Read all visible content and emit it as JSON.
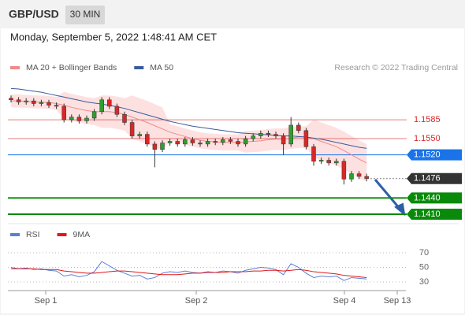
{
  "header": {
    "symbol": "GBP/USD",
    "interval": "30 MIN",
    "timestamp": "Monday, September 5, 2022 1:48:41 AM CET"
  },
  "chart_data": {
    "type": "candlestick",
    "credit": "Research © 2022 Trading Central",
    "up_color": "#2e9e2e",
    "down_color": "#d62828",
    "ylim": [
      1.1391,
      1.1661
    ],
    "x_labels": [
      "Sep 1",
      "Sep 2",
      "Sep 4",
      "Sep 13"
    ],
    "open": [
      1.1625,
      1.1622,
      1.1618,
      1.162,
      1.1615,
      1.1617,
      1.1612,
      1.161,
      1.1585,
      1.159,
      1.1583,
      1.1588,
      1.16,
      1.1622,
      1.161,
      1.1595,
      1.158,
      1.1555,
      1.1558,
      1.154,
      1.153,
      1.1542,
      1.1545,
      1.154,
      1.1548,
      1.1542,
      1.154,
      1.1545,
      1.1543,
      1.1548,
      1.1545,
      1.154,
      1.155,
      1.1555,
      1.156,
      1.1558,
      1.1555,
      1.154,
      1.1575,
      1.1565,
      1.1535,
      1.1508,
      1.151,
      1.1505,
      1.1508,
      1.1475,
      1.1485,
      1.148
    ],
    "high": [
      1.163,
      1.1627,
      1.1625,
      1.1625,
      1.1622,
      1.1622,
      1.1617,
      1.1615,
      1.1595,
      1.1595,
      1.1593,
      1.1605,
      1.1627,
      1.1627,
      1.1615,
      1.16,
      1.1585,
      1.1563,
      1.1563,
      1.1545,
      1.1547,
      1.155,
      1.155,
      1.1553,
      1.1553,
      1.1547,
      1.155,
      1.155,
      1.1553,
      1.1553,
      1.155,
      1.1555,
      1.156,
      1.1565,
      1.1565,
      1.1563,
      1.156,
      1.159,
      1.158,
      1.157,
      1.154,
      1.1515,
      1.1515,
      1.1513,
      1.1513,
      1.149,
      1.149,
      1.1485
    ],
    "low": [
      1.1617,
      1.1613,
      1.1613,
      1.161,
      1.161,
      1.1607,
      1.1605,
      1.158,
      1.158,
      1.1578,
      1.1578,
      1.1583,
      1.1595,
      1.1605,
      1.159,
      1.1575,
      1.155,
      1.155,
      1.1535,
      1.1497,
      1.1525,
      1.1537,
      1.1535,
      1.1535,
      1.1537,
      1.1535,
      1.1535,
      1.1538,
      1.1538,
      1.154,
      1.1535,
      1.1535,
      1.1545,
      1.155,
      1.1553,
      1.155,
      1.152,
      1.1535,
      1.156,
      1.153,
      1.15,
      1.1503,
      1.15,
      1.15,
      1.1465,
      1.147,
      1.1475,
      1.1471
    ],
    "close": [
      1.1622,
      1.1618,
      1.162,
      1.1615,
      1.1617,
      1.1612,
      1.161,
      1.1585,
      1.159,
      1.1583,
      1.1588,
      1.16,
      1.1622,
      1.161,
      1.1595,
      1.158,
      1.1555,
      1.1558,
      1.154,
      1.153,
      1.1542,
      1.1545,
      1.154,
      1.1548,
      1.1542,
      1.154,
      1.1545,
      1.1543,
      1.1548,
      1.1545,
      1.154,
      1.155,
      1.1555,
      1.156,
      1.1558,
      1.1555,
      1.154,
      1.1575,
      1.1565,
      1.1535,
      1.1508,
      1.151,
      1.1505,
      1.1508,
      1.1475,
      1.1485,
      1.148,
      1.1476
    ],
    "series": [
      {
        "name": "MA 20 + Bollinger Bands",
        "color": "#f08a8a",
        "band_color": "#fcd9d9",
        "values": [
          1.162,
          1.162,
          1.1619,
          1.1618,
          1.1618,
          1.1617,
          1.1615,
          1.1612,
          1.1608,
          1.1605,
          1.1602,
          1.16,
          1.16,
          1.16,
          1.1598,
          1.1595,
          1.159,
          1.1585,
          1.158,
          1.1574,
          1.1568,
          1.1562,
          1.1558,
          1.1554,
          1.155,
          1.1547,
          1.1545,
          1.1544,
          1.1543,
          1.1543,
          1.1543,
          1.1544,
          1.1545,
          1.1546,
          1.1548,
          1.1549,
          1.1549,
          1.1551,
          1.1553,
          1.1553,
          1.155,
          1.1545,
          1.154,
          1.1535,
          1.1528,
          1.152,
          1.1512,
          1.1505
        ],
        "upper": [
          1.1632,
          1.1632,
          1.1631,
          1.163,
          1.163,
          1.1629,
          1.1627,
          1.1637,
          1.1633,
          1.163,
          1.1627,
          1.1625,
          1.163,
          1.163,
          1.1628,
          1.1625,
          1.163,
          1.1625,
          1.162,
          1.1614,
          1.1608,
          1.1577,
          1.1573,
          1.1569,
          1.1565,
          1.1562,
          1.156,
          1.1559,
          1.1558,
          1.1558,
          1.1558,
          1.1564,
          1.1565,
          1.1566,
          1.1568,
          1.1569,
          1.1569,
          1.1571,
          1.1573,
          1.1573,
          1.1585,
          1.158,
          1.1575,
          1.157,
          1.1563,
          1.1555,
          1.1547,
          1.154
        ],
        "lower": [
          1.1608,
          1.1608,
          1.1607,
          1.1606,
          1.1606,
          1.1605,
          1.1603,
          1.1587,
          1.1583,
          1.158,
          1.1577,
          1.1575,
          1.157,
          1.157,
          1.1568,
          1.1565,
          1.155,
          1.1545,
          1.154,
          1.1534,
          1.1528,
          1.1547,
          1.1543,
          1.1539,
          1.1535,
          1.1532,
          1.153,
          1.1529,
          1.1528,
          1.1528,
          1.1528,
          1.1524,
          1.1525,
          1.1526,
          1.1528,
          1.1529,
          1.1529,
          1.1531,
          1.1533,
          1.1533,
          1.1515,
          1.151,
          1.1505,
          1.15,
          1.1493,
          1.1485,
          1.1477,
          1.147
        ]
      },
      {
        "name": "MA 50",
        "color": "#3a5a9c",
        "values": [
          1.1643,
          1.1642,
          1.164,
          1.1638,
          1.1636,
          1.1633,
          1.163,
          1.1627,
          1.1624,
          1.1621,
          1.1618,
          1.1616,
          1.1614,
          1.1612,
          1.1609,
          1.1606,
          1.1602,
          1.1598,
          1.1594,
          1.159,
          1.1586,
          1.1582,
          1.1579,
          1.1576,
          1.1573,
          1.1571,
          1.1569,
          1.1567,
          1.1565,
          1.1563,
          1.1561,
          1.156,
          1.1559,
          1.1558,
          1.1557,
          1.1556,
          1.1555,
          1.1555,
          1.1554,
          1.1553,
          1.1551,
          1.1549,
          1.1546,
          1.1543,
          1.154,
          1.1537,
          1.1534,
          1.1532
        ]
      }
    ],
    "levels": [
      {
        "value": 1.1585,
        "color": "#d62828",
        "style": "line"
      },
      {
        "value": 1.155,
        "label": "1.1550",
        "color": "#d62828",
        "style": "line"
      },
      {
        "value": 1.152,
        "label": "1.1520",
        "color": "#1a73e8",
        "style": "box"
      },
      {
        "value": 1.1476,
        "color": "#333333",
        "style": "last"
      },
      {
        "value": 1.144,
        "label": "1.1440",
        "color": "#0a8a0a",
        "style": "box"
      },
      {
        "value": 1.141,
        "label": "1.1410",
        "color": "#0a8a0a",
        "style": "box"
      }
    ],
    "rsi": {
      "ylim": [
        19.2,
        87.3
      ],
      "yticks": [
        70,
        50,
        30
      ],
      "series": [
        {
          "name": "RSI",
          "color": "#5b7fd6",
          "values": [
            50,
            48,
            49,
            47,
            48,
            46,
            45,
            38,
            40,
            37,
            39,
            44,
            58,
            52,
            46,
            42,
            38,
            39,
            34,
            36,
            42,
            44,
            43,
            45,
            43,
            42,
            44,
            43,
            45,
            44,
            42,
            46,
            48,
            50,
            49,
            47,
            40,
            55,
            50,
            42,
            36,
            38,
            37,
            38,
            32,
            36,
            35,
            34
          ]
        },
        {
          "name": "9MA",
          "color": "#e01818",
          "values": [
            48,
            48,
            48,
            48,
            47,
            47,
            47,
            45,
            44,
            43,
            42,
            42,
            43,
            44,
            45,
            45,
            44,
            43,
            42,
            41,
            40,
            40,
            40,
            41,
            42,
            42,
            43,
            43,
            43,
            44,
            44,
            44,
            45,
            45,
            46,
            46,
            45,
            46,
            47,
            46,
            44,
            43,
            42,
            41,
            39,
            38,
            37,
            36
          ]
        }
      ]
    }
  }
}
